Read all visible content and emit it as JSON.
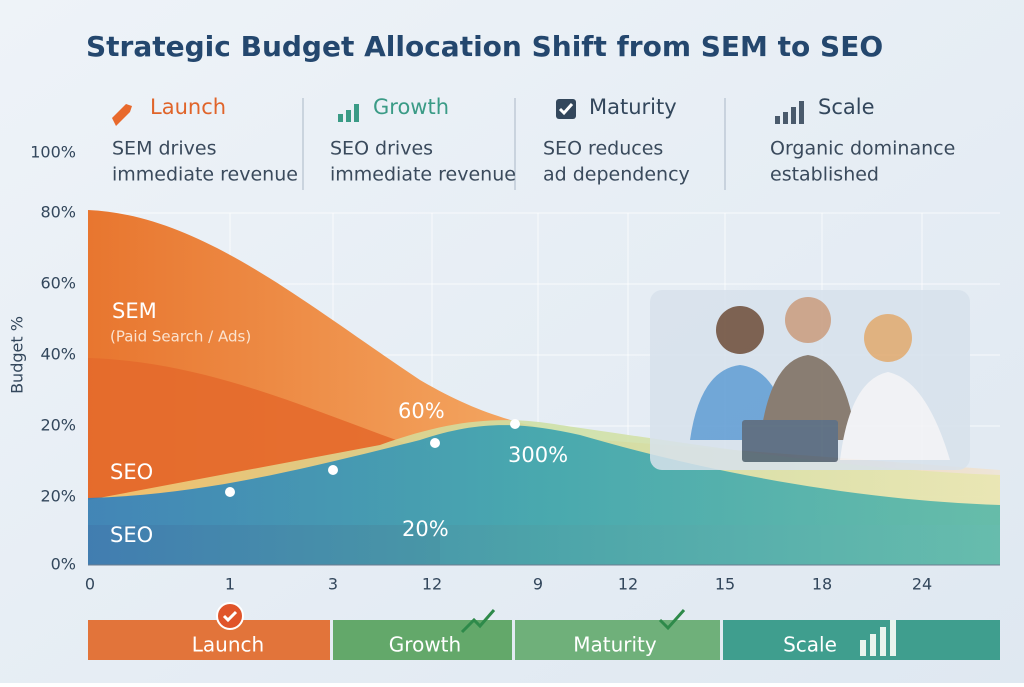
{
  "header": {
    "title": "Strategic Budget Allocation Shift from SEM to SEO"
  },
  "phases": [
    {
      "label": "Launch",
      "description": [
        "SEM drives",
        "immediate revenue"
      ]
    },
    {
      "label": "Growth",
      "description": [
        "SEO drives",
        "immediate revenue"
      ]
    },
    {
      "label": "Maturity",
      "description": [
        "SEO reduces",
        "ad dependency"
      ]
    },
    {
      "label": "Scale",
      "description": [
        "Organic dominance",
        "established"
      ]
    }
  ],
  "y_axis": {
    "title": "Budget %",
    "labels": [
      "100%",
      "80%",
      "60%",
      "40%",
      "20%",
      "20%",
      "0%"
    ]
  },
  "x_axis": {
    "labels": [
      "0",
      "1",
      "3",
      "12",
      "9",
      "12",
      "15",
      "18",
      "24"
    ]
  },
  "annotations": {
    "sem": "SEM",
    "sem_sub": "(Paid Search / Ads)",
    "seo_upper": "SEO",
    "seo_lower": "SEO",
    "pct_60": "60%",
    "pct_300": "300%",
    "pct_20": "20%"
  },
  "timeline": [
    "Launch",
    "Growth",
    "Maturity",
    "Scale"
  ]
}
